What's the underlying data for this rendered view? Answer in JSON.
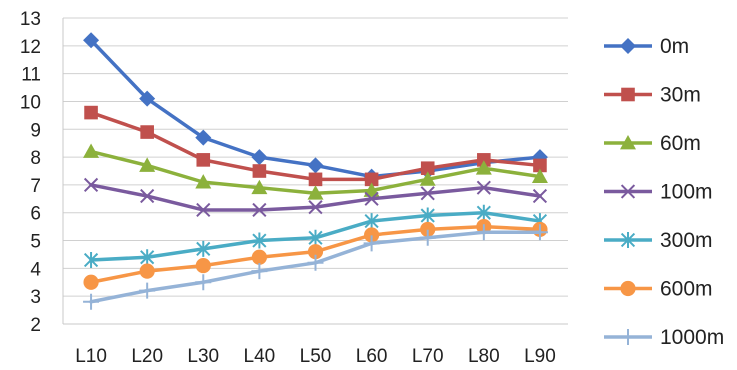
{
  "chart_data": {
    "type": "line",
    "title": "",
    "xlabel": "",
    "ylabel": "",
    "categories": [
      "L10",
      "L20",
      "L30",
      "L40",
      "L50",
      "L60",
      "L70",
      "L80",
      "L90"
    ],
    "ylim": [
      2,
      13
    ],
    "yticks": [
      2,
      3,
      4,
      5,
      6,
      7,
      8,
      9,
      10,
      11,
      12,
      13
    ],
    "grid": true,
    "legend_position": "right",
    "series": [
      {
        "name": "0m",
        "color": "#4472C4",
        "marker": "diamond",
        "values": [
          12.2,
          10.1,
          8.7,
          8.0,
          7.7,
          7.3,
          7.5,
          7.8,
          8.0
        ]
      },
      {
        "name": "30m",
        "color": "#C0504D",
        "marker": "square",
        "values": [
          9.6,
          8.9,
          7.9,
          7.5,
          7.2,
          7.2,
          7.6,
          7.9,
          7.7
        ]
      },
      {
        "name": "60m",
        "color": "#8CB13C",
        "marker": "triangle",
        "values": [
          8.2,
          7.7,
          7.1,
          6.9,
          6.7,
          6.8,
          7.2,
          7.6,
          7.3
        ]
      },
      {
        "name": "100m",
        "color": "#7A5A9E",
        "marker": "x",
        "values": [
          7.0,
          6.6,
          6.1,
          6.1,
          6.2,
          6.5,
          6.7,
          6.9,
          6.6
        ]
      },
      {
        "name": "300m",
        "color": "#4AACC5",
        "marker": "star",
        "values": [
          4.3,
          4.4,
          4.7,
          5.0,
          5.1,
          5.7,
          5.9,
          6.0,
          5.7
        ]
      },
      {
        "name": "600m",
        "color": "#F79646",
        "marker": "circle",
        "values": [
          3.5,
          3.9,
          4.1,
          4.4,
          4.6,
          5.2,
          5.4,
          5.5,
          5.4
        ]
      },
      {
        "name": "1000m",
        "color": "#95B3D7",
        "marker": "plus",
        "values": [
          2.8,
          3.2,
          3.5,
          3.9,
          4.2,
          4.9,
          5.1,
          5.3,
          5.3
        ]
      }
    ]
  }
}
